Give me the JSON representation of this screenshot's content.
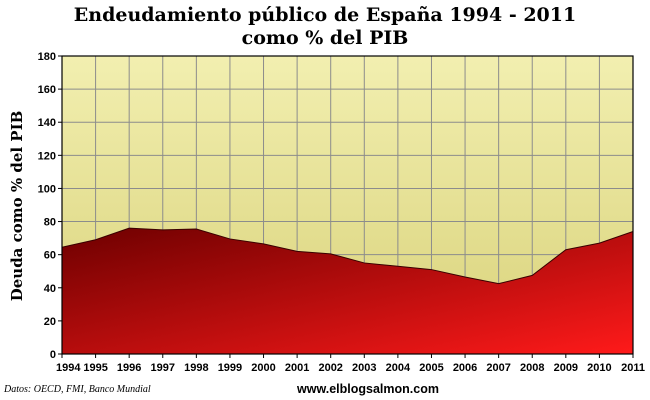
{
  "chart_data": {
    "type": "area",
    "title": "Endeudamiento público de España 1994 - 2011",
    "subtitle": "como % del PIB",
    "ylabel": "Deuda como % del PIB",
    "xlabel": "",
    "x": [
      "1994",
      "1995",
      "1996",
      "1997",
      "1998",
      "1999",
      "2000",
      "2001",
      "2002",
      "2003",
      "2004",
      "2005",
      "2006",
      "2007",
      "2008",
      "2009",
      "2010",
      "2011"
    ],
    "values": [
      64.5,
      69,
      76,
      75,
      75.5,
      69.5,
      66.5,
      62,
      60.5,
      55,
      53,
      51,
      46.5,
      42.5,
      47.5,
      63,
      67,
      74
    ],
    "ylim": [
      0,
      180
    ],
    "yticks": [
      0,
      20,
      40,
      60,
      80,
      100,
      120,
      140,
      160,
      180
    ],
    "grid": true,
    "legend": "none",
    "colors": {
      "plot_background_top": "#f2efb0",
      "plot_background_bottom": "#d9d27a",
      "area_top": "#ff1a1a",
      "area_bottom": "#6e0000",
      "grid": "#8c8c8c"
    }
  },
  "footer": {
    "source": "Datos: OECD, FMI, Banco Mundial",
    "website": "www.elblogsalmon.com"
  }
}
